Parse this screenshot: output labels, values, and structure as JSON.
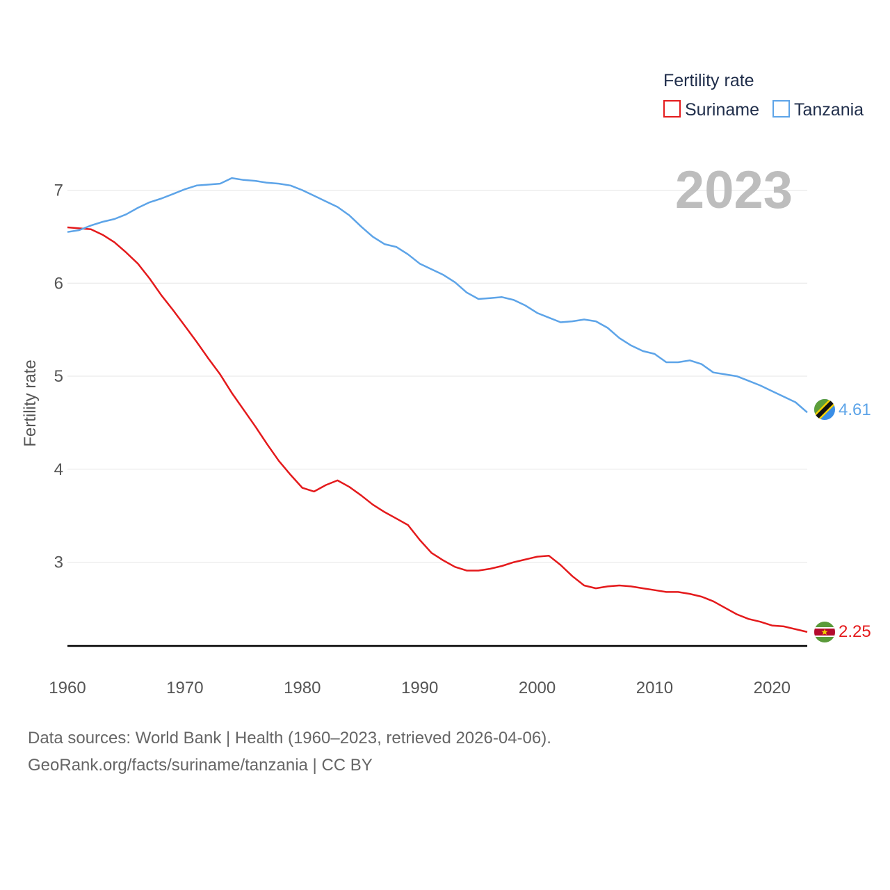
{
  "chart_data": {
    "type": "line",
    "title": "",
    "xlabel": "",
    "ylabel": "Fertility rate",
    "xlim": [
      1960,
      2023
    ],
    "ylim": [
      2.1,
      7.4
    ],
    "x_ticks": [
      1960,
      1970,
      1980,
      1990,
      2000,
      2010,
      2020
    ],
    "y_ticks": [
      3,
      4,
      5,
      6,
      7
    ],
    "grid": true,
    "legend": {
      "title": "Fertility rate",
      "position": "top-right",
      "entries": [
        "Suriname",
        "Tanzania"
      ]
    },
    "year_label": "2023",
    "years": [
      1960,
      1961,
      1962,
      1963,
      1964,
      1965,
      1966,
      1967,
      1968,
      1969,
      1970,
      1971,
      1972,
      1973,
      1974,
      1975,
      1976,
      1977,
      1978,
      1979,
      1980,
      1981,
      1982,
      1983,
      1984,
      1985,
      1986,
      1987,
      1988,
      1989,
      1990,
      1991,
      1992,
      1993,
      1994,
      1995,
      1996,
      1997,
      1998,
      1999,
      2000,
      2001,
      2002,
      2003,
      2004,
      2005,
      2006,
      2007,
      2008,
      2009,
      2010,
      2011,
      2012,
      2013,
      2014,
      2015,
      2016,
      2017,
      2018,
      2019,
      2020,
      2021,
      2022,
      2023
    ],
    "series": [
      {
        "name": "Suriname",
        "color": "#e41a1c",
        "end_label": "2.25",
        "values": [
          6.6,
          6.59,
          6.58,
          6.52,
          6.44,
          6.33,
          6.21,
          6.05,
          5.87,
          5.71,
          5.54,
          5.37,
          5.19,
          5.02,
          4.82,
          4.64,
          4.46,
          4.27,
          4.09,
          3.94,
          3.8,
          3.76,
          3.83,
          3.88,
          3.81,
          3.72,
          3.62,
          3.54,
          3.47,
          3.4,
          3.24,
          3.1,
          3.02,
          2.95,
          2.91,
          2.91,
          2.93,
          2.96,
          3.0,
          3.03,
          3.06,
          3.07,
          2.97,
          2.85,
          2.75,
          2.72,
          2.74,
          2.75,
          2.74,
          2.72,
          2.7,
          2.68,
          2.68,
          2.66,
          2.63,
          2.58,
          2.51,
          2.44,
          2.39,
          2.36,
          2.32,
          2.31,
          2.28,
          2.25
        ]
      },
      {
        "name": "Tanzania",
        "color": "#5da4e8",
        "end_label": "4.61",
        "values": [
          6.55,
          6.57,
          6.62,
          6.66,
          6.69,
          6.74,
          6.81,
          6.87,
          6.91,
          6.96,
          7.01,
          7.05,
          7.06,
          7.07,
          7.13,
          7.11,
          7.1,
          7.08,
          7.07,
          7.05,
          7.0,
          6.94,
          6.88,
          6.82,
          6.73,
          6.61,
          6.5,
          6.42,
          6.39,
          6.31,
          6.21,
          6.15,
          6.09,
          6.01,
          5.9,
          5.83,
          5.84,
          5.85,
          5.82,
          5.76,
          5.68,
          5.63,
          5.58,
          5.59,
          5.61,
          5.59,
          5.52,
          5.41,
          5.33,
          5.27,
          5.24,
          5.15,
          5.15,
          5.17,
          5.13,
          5.04,
          5.02,
          5.0,
          4.95,
          4.9,
          4.84,
          4.78,
          4.72,
          4.61
        ]
      }
    ]
  },
  "footer": {
    "line1": "Data sources: World Bank | Health (1960–2023, retrieved 2026-04-06).",
    "line2": "GeoRank.org/facts/suriname/tanzania | CC BY"
  }
}
